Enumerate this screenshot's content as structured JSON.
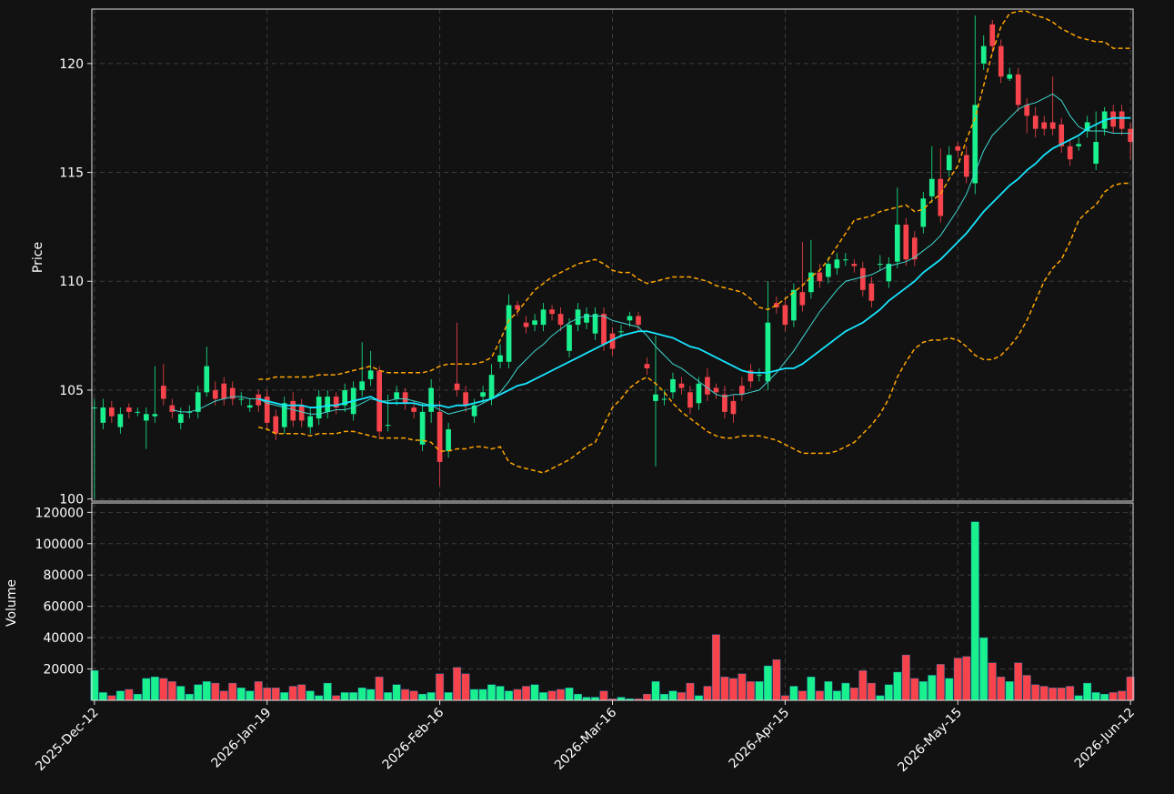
{
  "chart_data": {
    "type": "candlestick",
    "ylabel": "Price",
    "ylim": [
      99.9,
      122.5
    ],
    "yticks": [
      100,
      105,
      110,
      115,
      120
    ],
    "grid": true,
    "up_color": "#19f08e",
    "down_color": "#f7434b",
    "categories": [
      "2025-Dec-12",
      null,
      null,
      null,
      null,
      null,
      null,
      null,
      null,
      null,
      null,
      null,
      null,
      null,
      null,
      null,
      null,
      null,
      null,
      null,
      "2026-Jan-19",
      null,
      null,
      null,
      null,
      null,
      null,
      null,
      null,
      null,
      null,
      null,
      null,
      null,
      null,
      null,
      null,
      null,
      null,
      null,
      "2026-Feb-16",
      null,
      null,
      null,
      null,
      null,
      null,
      null,
      null,
      null,
      null,
      null,
      null,
      null,
      null,
      null,
      null,
      null,
      null,
      null,
      "2026-Mar-16",
      null,
      null,
      null,
      null,
      null,
      null,
      null,
      null,
      null,
      null,
      null,
      null,
      null,
      null,
      null,
      null,
      null,
      null,
      null,
      "2026-Apr-15",
      null,
      null,
      null,
      null,
      null,
      null,
      null,
      null,
      null,
      null,
      null,
      null,
      null,
      null,
      null,
      null,
      null,
      null,
      null,
      "2026-May-15",
      null,
      null,
      null,
      null,
      null,
      null,
      null,
      null,
      null,
      null,
      null,
      null,
      null,
      null,
      null,
      null,
      null,
      null,
      null,
      "2026-Jun-12"
    ],
    "open": [
      104.2,
      103.5,
      104.2,
      103.3,
      104.2,
      104.0,
      103.6,
      103.8,
      105.2,
      104.3,
      103.5,
      104.0,
      104.0,
      104.9,
      105.0,
      105.3,
      105.1,
      104.6,
      104.2,
      104.8,
      104.7,
      103.8,
      103.3,
      104.5,
      104.3,
      103.3,
      103.7,
      104.0,
      104.7,
      104.3,
      103.9,
      105.0,
      105.5,
      105.9,
      103.4,
      104.6,
      104.9,
      104.2,
      102.5,
      104.0,
      104.0,
      102.2,
      105.3,
      104.9,
      103.8,
      104.7,
      104.6,
      106.3,
      106.3,
      108.9,
      108.1,
      108.0,
      108.0,
      108.7,
      108.5,
      106.8,
      108.0,
      108.1,
      107.6,
      108.5,
      107.6,
      107.7,
      108.2,
      108.4,
      106.2,
      104.5,
      104.6,
      104.9,
      105.3,
      104.9,
      104.4,
      105.6,
      105.1,
      104.8,
      104.5,
      105.2,
      105.9,
      105.7,
      105.4,
      109.0,
      108.9,
      108.2,
      109.5,
      109.5,
      110.4,
      110.2,
      110.6,
      111.0,
      110.8,
      110.6,
      109.9,
      110.8,
      110.0,
      110.9,
      112.6,
      112.0,
      112.5,
      113.9,
      114.7,
      115.1,
      116.2,
      115.8,
      114.5,
      120.0,
      121.8,
      120.8,
      119.3,
      119.5,
      118.1,
      117.6,
      117.3,
      117.3,
      117.2,
      116.2,
      116.2,
      116.9,
      115.4,
      117.0,
      117.8,
      117.8,
      117.0
    ],
    "high": [
      104.6,
      104.6,
      104.5,
      104.2,
      104.4,
      104.2,
      104.2,
      106.1,
      106.2,
      104.6,
      104.2,
      104.3,
      105.2,
      107.0,
      105.4,
      105.6,
      105.4,
      104.9,
      104.6,
      105.0,
      105.0,
      104.1,
      104.7,
      104.9,
      104.6,
      104.2,
      105.0,
      105.0,
      104.9,
      105.3,
      105.4,
      107.2,
      106.8,
      106.1,
      104.8,
      105.2,
      105.1,
      104.5,
      104.4,
      105.5,
      104.5,
      103.5,
      108.1,
      105.2,
      104.6,
      105.2,
      106.2,
      107.1,
      109.4,
      109.1,
      108.4,
      108.5,
      109.0,
      108.9,
      108.8,
      108.3,
      109.0,
      108.8,
      108.8,
      108.8,
      107.9,
      108.0,
      108.6,
      108.6,
      106.5,
      107.5,
      105.0,
      105.8,
      105.6,
      105.2,
      105.6,
      106.0,
      105.3,
      105.2,
      104.8,
      105.6,
      106.2,
      106.0,
      110.0,
      109.3,
      109.2,
      109.9,
      111.8,
      111.9,
      110.8,
      111.1,
      111.3,
      111.3,
      111.0,
      110.9,
      110.2,
      111.2,
      111.1,
      114.3,
      112.9,
      112.3,
      114.1,
      116.2,
      116.1,
      116.2,
      116.4,
      116.2,
      122.2,
      121.3,
      122.0,
      121.1,
      119.8,
      119.8,
      118.4,
      118.0,
      117.6,
      119.4,
      117.5,
      116.5,
      116.6,
      117.6,
      117.8,
      118.0,
      118.1,
      118.1,
      117.3
    ],
    "low": [
      100.0,
      103.2,
      103.5,
      103.0,
      103.7,
      103.8,
      102.3,
      103.5,
      104.3,
      103.7,
      103.2,
      103.7,
      103.7,
      104.7,
      104.3,
      104.3,
      104.3,
      104.3,
      104.0,
      104.0,
      103.2,
      102.7,
      103.0,
      103.3,
      103.3,
      103.0,
      103.4,
      103.7,
      103.9,
      104.0,
      103.6,
      104.7,
      105.2,
      102.8,
      103.1,
      104.3,
      104.1,
      103.7,
      102.2,
      103.5,
      100.6,
      101.9,
      104.7,
      104.0,
      103.5,
      104.4,
      104.3,
      106.0,
      106.0,
      108.4,
      107.6,
      107.7,
      107.7,
      108.2,
      107.7,
      106.5,
      107.7,
      107.8,
      107.3,
      106.8,
      106.6,
      107.4,
      107.9,
      107.7,
      105.7,
      101.5,
      104.3,
      104.6,
      104.8,
      103.9,
      104.1,
      104.5,
      104.6,
      103.7,
      103.5,
      104.5,
      105.1,
      105.4,
      105.0,
      108.5,
      107.7,
      107.9,
      108.6,
      109.2,
      109.7,
      109.9,
      110.3,
      110.7,
      110.4,
      109.3,
      108.8,
      110.5,
      109.7,
      110.6,
      110.7,
      110.7,
      112.2,
      113.6,
      112.7,
      114.8,
      115.7,
      114.5,
      114.0,
      119.7,
      120.5,
      119.1,
      119.2,
      117.8,
      116.8,
      116.6,
      116.7,
      116.7,
      115.9,
      115.3,
      116.0,
      116.6,
      115.1,
      116.7,
      116.8,
      116.7,
      115.6
    ],
    "close": [
      104.2,
      104.2,
      103.8,
      103.9,
      104.0,
      104.0,
      103.9,
      103.9,
      104.6,
      104.0,
      103.9,
      104.0,
      104.9,
      106.1,
      104.6,
      104.6,
      104.6,
      104.6,
      104.3,
      104.3,
      103.5,
      103.0,
      104.4,
      103.6,
      103.6,
      103.8,
      104.7,
      104.7,
      104.2,
      105.0,
      105.1,
      105.4,
      105.9,
      103.1,
      103.4,
      104.9,
      104.4,
      104.0,
      104.0,
      105.1,
      101.7,
      103.2,
      105.0,
      104.3,
      104.3,
      104.9,
      105.7,
      106.6,
      108.9,
      108.7,
      107.9,
      108.2,
      108.7,
      108.5,
      108.0,
      108.0,
      108.7,
      108.5,
      108.5,
      107.1,
      106.9,
      107.7,
      108.4,
      108.0,
      106.0,
      104.8,
      104.6,
      105.5,
      105.1,
      104.2,
      105.3,
      104.8,
      104.9,
      104.0,
      103.9,
      104.8,
      105.4,
      105.7,
      108.1,
      108.8,
      108.0,
      109.6,
      108.9,
      110.4,
      110.0,
      110.8,
      111.0,
      111.0,
      110.7,
      109.6,
      109.1,
      110.8,
      110.8,
      112.6,
      111.0,
      111.0,
      113.8,
      114.7,
      113.0,
      115.8,
      116.0,
      114.8,
      118.1,
      120.8,
      120.8,
      119.4,
      119.5,
      118.1,
      117.6,
      117.0,
      117.0,
      117.0,
      116.2,
      115.6,
      116.3,
      117.3,
      116.4,
      117.8,
      117.1,
      117.0,
      116.4
    ],
    "lines": [
      {
        "color": "#3fd8d0",
        "style": "solid",
        "values": [
          null,
          null,
          null,
          null,
          null,
          null,
          null,
          null,
          null,
          104.1,
          104.0,
          104.0,
          104.1,
          104.3,
          104.5,
          104.6,
          104.7,
          104.7,
          104.6,
          104.6,
          104.4,
          104.3,
          104.2,
          104.1,
          104.0,
          103.9,
          103.9,
          104.0,
          104.1,
          104.1,
          104.2,
          104.4,
          104.6,
          104.5,
          104.5,
          104.6,
          104.6,
          104.5,
          104.4,
          104.3,
          104.1,
          103.9,
          104.0,
          104.1,
          104.2,
          104.4,
          104.6,
          104.9,
          105.4,
          106.0,
          106.4,
          106.8,
          107.1,
          107.5,
          107.8,
          108.1,
          108.3,
          108.4,
          108.4,
          108.4,
          108.2,
          108.1,
          108.0,
          107.9,
          107.5,
          107.0,
          106.6,
          106.2,
          106.0,
          105.7,
          105.4,
          105.1,
          104.8,
          104.7,
          104.8,
          104.8,
          104.9,
          105.0,
          105.4,
          105.8,
          106.3,
          106.8,
          107.4,
          108.0,
          108.6,
          109.1,
          109.6,
          110.0,
          110.1,
          110.2,
          110.3,
          110.5,
          110.7,
          110.8,
          110.9,
          111.1,
          111.4,
          111.7,
          112.1,
          112.7,
          113.3,
          114.0,
          115.0,
          116.0,
          116.7,
          117.1,
          117.5,
          117.9,
          118.1,
          118.2,
          118.4,
          118.6,
          118.3,
          117.6,
          117.1,
          116.9,
          116.9,
          116.9,
          116.8,
          116.8,
          116.8
        ]
      },
      {
        "color": "#16e6ff",
        "style": "solid",
        "values": [
          null,
          null,
          null,
          null,
          null,
          null,
          null,
          null,
          null,
          null,
          null,
          null,
          null,
          null,
          null,
          null,
          null,
          null,
          null,
          104.6,
          104.5,
          104.4,
          104.3,
          104.3,
          104.3,
          104.2,
          104.2,
          104.3,
          104.3,
          104.4,
          104.5,
          104.6,
          104.7,
          104.5,
          104.4,
          104.4,
          104.4,
          104.4,
          104.3,
          104.3,
          104.3,
          104.2,
          104.3,
          104.3,
          104.4,
          104.5,
          104.6,
          104.8,
          105.0,
          105.2,
          105.3,
          105.5,
          105.7,
          105.9,
          106.1,
          106.3,
          106.5,
          106.7,
          106.9,
          107.1,
          107.3,
          107.5,
          107.6,
          107.7,
          107.7,
          107.6,
          107.5,
          107.4,
          107.2,
          107.0,
          106.9,
          106.7,
          106.5,
          106.3,
          106.1,
          105.9,
          105.8,
          105.8,
          105.8,
          105.9,
          106.0,
          106.0,
          106.2,
          106.5,
          106.8,
          107.1,
          107.4,
          107.7,
          107.9,
          108.1,
          108.4,
          108.7,
          109.1,
          109.4,
          109.7,
          110.0,
          110.4,
          110.7,
          111.0,
          111.4,
          111.8,
          112.2,
          112.7,
          113.2,
          113.6,
          114.0,
          114.4,
          114.7,
          115.1,
          115.4,
          115.8,
          116.1,
          116.3,
          116.5,
          116.7,
          117.0,
          117.2,
          117.4,
          117.5,
          117.5,
          117.5
        ]
      },
      {
        "color": "#ffa500",
        "style": "dashed",
        "values": [
          null,
          null,
          null,
          null,
          null,
          null,
          null,
          null,
          null,
          null,
          null,
          null,
          null,
          null,
          null,
          null,
          null,
          null,
          null,
          105.5,
          105.5,
          105.6,
          105.6,
          105.6,
          105.6,
          105.6,
          105.7,
          105.7,
          105.7,
          105.8,
          105.9,
          106.0,
          106.1,
          105.9,
          105.8,
          105.8,
          105.8,
          105.8,
          105.8,
          105.9,
          106.1,
          106.2,
          106.2,
          106.2,
          106.2,
          106.3,
          106.5,
          107.3,
          108.2,
          108.6,
          109.1,
          109.6,
          109.9,
          110.2,
          110.4,
          110.6,
          110.8,
          110.9,
          111.0,
          110.8,
          110.5,
          110.4,
          110.4,
          110.1,
          109.9,
          110.0,
          110.1,
          110.2,
          110.2,
          110.2,
          110.1,
          110.0,
          109.8,
          109.7,
          109.6,
          109.5,
          109.2,
          108.8,
          108.7,
          108.9,
          109.2,
          109.5,
          109.8,
          110.2,
          110.5,
          111.0,
          111.6,
          112.2,
          112.8,
          112.9,
          113.0,
          113.2,
          113.3,
          113.4,
          113.5,
          113.2,
          113.3,
          113.7,
          114.0,
          114.7,
          115.3,
          116.5,
          117.5,
          119.0,
          120.5,
          121.7,
          122.3,
          122.4,
          122.4,
          122.2,
          122.1,
          121.9,
          121.6,
          121.4,
          121.2,
          121.1,
          121.0,
          121.0,
          120.7,
          120.7,
          120.7
        ]
      },
      {
        "color": "#ffa500",
        "style": "dashed",
        "values": [
          null,
          null,
          null,
          null,
          null,
          null,
          null,
          null,
          null,
          null,
          null,
          null,
          null,
          null,
          null,
          null,
          null,
          null,
          null,
          103.3,
          103.2,
          103.0,
          103.0,
          103.0,
          103.0,
          102.9,
          103.0,
          103.0,
          103.0,
          103.1,
          103.1,
          103.0,
          102.9,
          102.8,
          102.8,
          102.8,
          102.8,
          102.7,
          102.7,
          102.6,
          102.2,
          102.2,
          102.3,
          102.3,
          102.4,
          102.4,
          102.3,
          102.4,
          101.7,
          101.5,
          101.4,
          101.3,
          101.2,
          101.4,
          101.6,
          101.8,
          102.1,
          102.4,
          102.6,
          103.4,
          104.2,
          104.6,
          105.1,
          105.4,
          105.6,
          105.3,
          104.9,
          104.4,
          104.0,
          103.7,
          103.4,
          103.1,
          102.9,
          102.8,
          102.8,
          102.9,
          102.9,
          102.9,
          102.8,
          102.7,
          102.5,
          102.3,
          102.1,
          102.1,
          102.1,
          102.1,
          102.2,
          102.4,
          102.6,
          103.0,
          103.4,
          103.9,
          104.6,
          105.6,
          106.3,
          106.9,
          107.2,
          107.3,
          107.3,
          107.4,
          107.3,
          107.0,
          106.6,
          106.4,
          106.4,
          106.6,
          107.0,
          107.5,
          108.2,
          109.1,
          110.0,
          110.6,
          111.0,
          111.8,
          112.8,
          113.2,
          113.5,
          114.1,
          114.4,
          114.5,
          114.5
        ]
      }
    ],
    "volume": {
      "ylabel": "Volume",
      "ylim": [
        0,
        126000
      ],
      "yticks": [
        20000,
        40000,
        60000,
        80000,
        100000,
        120000
      ],
      "values": [
        19000,
        5000,
        3000,
        6000,
        7000,
        4000,
        14000,
        15000,
        14000,
        12000,
        9000,
        4000,
        10000,
        12000,
        11000,
        6000,
        11000,
        8000,
        6000,
        12000,
        8000,
        8000,
        5000,
        9000,
        10000,
        6000,
        3000,
        11000,
        3000,
        5000,
        5000,
        8000,
        7000,
        15000,
        5000,
        10000,
        7000,
        6000,
        4000,
        5000,
        17000,
        5000,
        21000,
        17000,
        7000,
        7000,
        10000,
        9000,
        6000,
        7000,
        9000,
        10000,
        5000,
        6000,
        7000,
        8000,
        4000,
        2000,
        2000,
        6000,
        1000,
        2000,
        1000,
        1000,
        4000,
        12000,
        4000,
        6000,
        5000,
        11000,
        3000,
        9000,
        42000,
        15000,
        14000,
        17000,
        12000,
        12000,
        22000,
        26000,
        3000,
        9000,
        6000,
        15000,
        6000,
        12000,
        6000,
        11000,
        8000,
        19000,
        11000,
        3000,
        10000,
        18000,
        29000,
        14000,
        12000,
        16000,
        23000,
        14000,
        27000,
        28000,
        114000,
        40000,
        24000,
        15000,
        12000,
        24000,
        16000,
        10000,
        9000,
        8000,
        8000,
        9000,
        3000,
        11000,
        5000,
        4000,
        5000,
        6000,
        15000
      ]
    }
  }
}
